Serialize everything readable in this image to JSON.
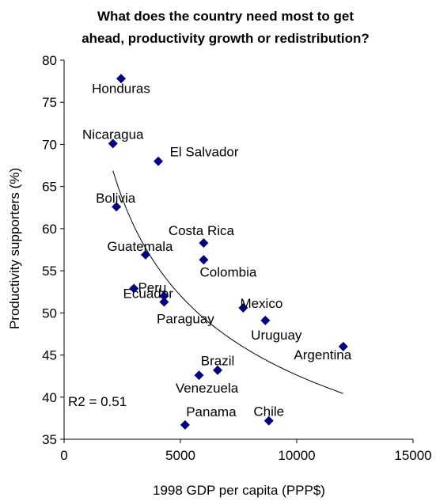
{
  "chart_data": {
    "type": "scatter",
    "title": [
      "What does the country need most to get",
      "ahead, productivity growth or redistribution?"
    ],
    "xlabel": "1998 GDP per capita (PPP$)",
    "ylabel": "Productivity supporters (%)",
    "xlim": [
      0,
      15000
    ],
    "ylim": [
      35,
      80
    ],
    "xticks": [
      0,
      5000,
      10000,
      15000
    ],
    "yticks": [
      35,
      40,
      45,
      50,
      55,
      60,
      65,
      70,
      75,
      80
    ],
    "grid": false,
    "marker_color": "#000080",
    "trendline_color": "#000000",
    "annotation": "R2 = 0.51",
    "points": [
      {
        "label": "Honduras",
        "x": 2450,
        "y": 77.8
      },
      {
        "label": "Nicaragua",
        "x": 2100,
        "y": 70.1
      },
      {
        "label": "El Salvador",
        "x": 4050,
        "y": 68.0
      },
      {
        "label": "Bolivia",
        "x": 2250,
        "y": 62.6
      },
      {
        "label": "Costa Rica",
        "x": 6000,
        "y": 58.3
      },
      {
        "label": "Guatemala",
        "x": 3500,
        "y": 56.9
      },
      {
        "label": "Colombia",
        "x": 6000,
        "y": 56.3
      },
      {
        "label": "Ecuador",
        "x": 3000,
        "y": 52.9
      },
      {
        "label": "Peru",
        "x": 4300,
        "y": 52.0
      },
      {
        "label": "Paraguay",
        "x": 4300,
        "y": 51.3
      },
      {
        "label": "Mexico",
        "x": 7700,
        "y": 50.6
      },
      {
        "label": "Uruguay",
        "x": 8650,
        "y": 49.1
      },
      {
        "label": "Argentina",
        "x": 12000,
        "y": 46.0
      },
      {
        "label": "Brazil",
        "x": 6600,
        "y": 43.2
      },
      {
        "label": "Venezuela",
        "x": 5800,
        "y": 42.6
      },
      {
        "label": "Chile",
        "x": 8800,
        "y": 37.2
      },
      {
        "label": "Panama",
        "x": 5200,
        "y": 36.7
      }
    ]
  }
}
